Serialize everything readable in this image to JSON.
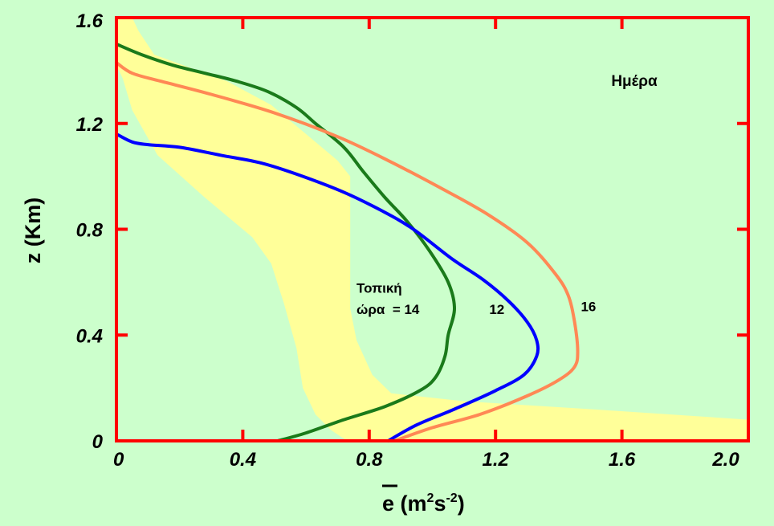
{
  "chart_data": {
    "type": "line",
    "title": "Ημέρα",
    "xlabel": {
      "symbol": "e",
      "unit_open": " (m",
      "exp1": "2",
      "mid": "s",
      "exp2": "-2",
      "unit_close": ")"
    },
    "ylabel": "z (Km)",
    "xlim": [
      0,
      2.0
    ],
    "ylim": [
      0,
      1.6
    ],
    "x_ticks": [
      "0",
      "0.4",
      "0.8",
      "1.2",
      "1.6",
      "2.0"
    ],
    "x_tick_values": [
      0,
      0.4,
      0.8,
      1.2,
      1.6,
      2.0
    ],
    "y_ticks": [
      "0",
      "0.4",
      "0.8",
      "1.2",
      "1.6"
    ],
    "y_tick_values": [
      0,
      0.4,
      0.8,
      1.2,
      1.6
    ],
    "grid": false,
    "colors": {
      "background": "#ccffcc",
      "frame": "#ff0000",
      "band": "#ffff99",
      "hour14": "#1a7a1a",
      "hour12": "#0000ff",
      "hour16": "#ff8855"
    },
    "band": {
      "left": [
        [
          0.73,
          0.0
        ],
        [
          0.68,
          0.04
        ],
        [
          0.63,
          0.1
        ],
        [
          0.59,
          0.2
        ],
        [
          0.57,
          0.35
        ],
        [
          0.53,
          0.52
        ],
        [
          0.49,
          0.67
        ],
        [
          0.43,
          0.77
        ],
        [
          0.28,
          0.92
        ],
        [
          0.13,
          1.08
        ],
        [
          0.05,
          1.25
        ],
        [
          0.02,
          1.37
        ],
        [
          0.0,
          1.42
        ]
      ],
      "right": [
        [
          2.0,
          0.08
        ],
        [
          1.5,
          0.12
        ],
        [
          1.1,
          0.15
        ],
        [
          0.87,
          0.18
        ],
        [
          0.81,
          0.25
        ],
        [
          0.76,
          0.38
        ],
        [
          0.74,
          0.5
        ],
        [
          0.74,
          0.7
        ],
        [
          0.74,
          0.88
        ],
        [
          0.74,
          1.0
        ],
        [
          0.7,
          1.06
        ],
        [
          0.6,
          1.16
        ],
        [
          0.49,
          1.27
        ],
        [
          0.35,
          1.36
        ],
        [
          0.12,
          1.46
        ],
        [
          0.07,
          1.55
        ],
        [
          0.05,
          1.6
        ],
        [
          0.0,
          1.6
        ]
      ]
    },
    "series": [
      {
        "key": "hour14",
        "values": [
          [
            0.51,
            0.0
          ],
          [
            0.6,
            0.03
          ],
          [
            0.72,
            0.08
          ],
          [
            0.85,
            0.13
          ],
          [
            0.96,
            0.19
          ],
          [
            1.01,
            0.24
          ],
          [
            1.04,
            0.32
          ],
          [
            1.05,
            0.4
          ],
          [
            1.07,
            0.5
          ],
          [
            1.05,
            0.6
          ],
          [
            0.99,
            0.72
          ],
          [
            0.92,
            0.83
          ],
          [
            0.85,
            0.92
          ],
          [
            0.78,
            1.02
          ],
          [
            0.72,
            1.11
          ],
          [
            0.63,
            1.2
          ],
          [
            0.57,
            1.26
          ],
          [
            0.48,
            1.32
          ],
          [
            0.38,
            1.36
          ],
          [
            0.28,
            1.39
          ],
          [
            0.18,
            1.42
          ],
          [
            0.08,
            1.46
          ],
          [
            0.0,
            1.5
          ]
        ]
      },
      {
        "key": "hour12",
        "values": [
          [
            0.86,
            0.0
          ],
          [
            0.95,
            0.06
          ],
          [
            1.07,
            0.12
          ],
          [
            1.2,
            0.19
          ],
          [
            1.29,
            0.25
          ],
          [
            1.33,
            0.32
          ],
          [
            1.33,
            0.38
          ],
          [
            1.3,
            0.45
          ],
          [
            1.24,
            0.53
          ],
          [
            1.16,
            0.61
          ],
          [
            1.06,
            0.69
          ],
          [
            0.94,
            0.8
          ],
          [
            0.84,
            0.87
          ],
          [
            0.72,
            0.94
          ],
          [
            0.59,
            1.0
          ],
          [
            0.46,
            1.05
          ],
          [
            0.33,
            1.08
          ],
          [
            0.2,
            1.11
          ],
          [
            0.1,
            1.12
          ],
          [
            0.05,
            1.13
          ],
          [
            0.0,
            1.16
          ]
        ]
      },
      {
        "key": "hour16",
        "values": [
          [
            0.88,
            0.0
          ],
          [
            1.0,
            0.05
          ],
          [
            1.15,
            0.1
          ],
          [
            1.3,
            0.17
          ],
          [
            1.4,
            0.23
          ],
          [
            1.45,
            0.28
          ],
          [
            1.46,
            0.34
          ],
          [
            1.45,
            0.45
          ],
          [
            1.43,
            0.55
          ],
          [
            1.39,
            0.63
          ],
          [
            1.3,
            0.75
          ],
          [
            1.17,
            0.86
          ],
          [
            1.02,
            0.96
          ],
          [
            0.86,
            1.06
          ],
          [
            0.7,
            1.15
          ],
          [
            0.5,
            1.24
          ],
          [
            0.3,
            1.31
          ],
          [
            0.14,
            1.36
          ],
          [
            0.05,
            1.39
          ],
          [
            0.0,
            1.43
          ]
        ]
      }
    ],
    "annotations": [
      {
        "text": "Τοπική",
        "x": 0.76,
        "y": 0.56
      },
      {
        "text": "ώρα  = 14",
        "x": 0.76,
        "y": 0.48
      },
      {
        "text": "12",
        "x": 1.18,
        "y": 0.48
      },
      {
        "text": "16",
        "x": 1.47,
        "y": 0.49
      }
    ]
  }
}
